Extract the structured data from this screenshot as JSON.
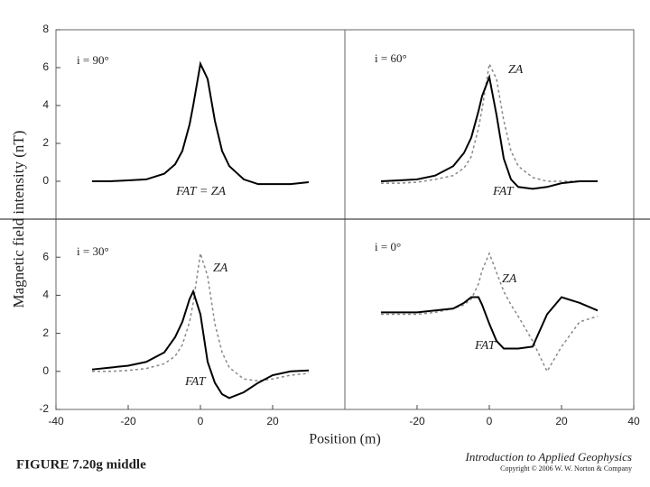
{
  "chart_data": [
    {
      "type": "line",
      "annotation": "i = 90°",
      "xlim": [
        -40,
        40
      ],
      "ylim": [
        -2,
        8
      ],
      "yticks": [
        0,
        2,
        4,
        6,
        8
      ],
      "x": [
        -30,
        -25,
        -20,
        -15,
        -10,
        -7,
        -5,
        -3,
        -2,
        0,
        2,
        4,
        6,
        8,
        12,
        16,
        20,
        25,
        30
      ],
      "series": [
        {
          "name": "FAT = ZA",
          "color": "#000000",
          "style": "solid",
          "values": [
            0,
            0,
            0.05,
            0.1,
            0.4,
            0.9,
            1.6,
            3,
            4,
            6.2,
            5.4,
            3.2,
            1.6,
            0.8,
            0.1,
            -0.15,
            -0.15,
            -0.15,
            -0.05
          ]
        }
      ]
    },
    {
      "type": "line",
      "annotation": "i = 60°",
      "xlim": [
        -40,
        40
      ],
      "ylim": [
        -2,
        8
      ],
      "x": [
        -30,
        -25,
        -20,
        -15,
        -10,
        -7,
        -5,
        -3,
        -2,
        0,
        2,
        4,
        6,
        8,
        12,
        16,
        20,
        25,
        30
      ],
      "series": [
        {
          "name": "ZA",
          "color": "#888888",
          "style": "dashed",
          "values": [
            -0.1,
            -0.1,
            -0.05,
            0.1,
            0.3,
            0.7,
            1.3,
            2.8,
            3.8,
            6.2,
            5.4,
            3.2,
            1.6,
            0.8,
            0.2,
            0,
            0,
            0,
            0
          ]
        },
        {
          "name": "FAT",
          "color": "#000000",
          "style": "solid",
          "values": [
            0,
            0.05,
            0.1,
            0.3,
            0.8,
            1.5,
            2.3,
            3.7,
            4.5,
            5.5,
            3.5,
            1.2,
            0.1,
            -0.3,
            -0.4,
            -0.3,
            -0.1,
            0,
            0
          ]
        }
      ]
    },
    {
      "type": "line",
      "annotation": "i = 30°",
      "xlim": [
        -40,
        40
      ],
      "ylim": [
        -2,
        8
      ],
      "yticks": [
        -2,
        0,
        2,
        4,
        6
      ],
      "xticks": [
        -40,
        -20,
        0,
        20
      ],
      "x": [
        -30,
        -25,
        -20,
        -15,
        -10,
        -7,
        -5,
        -3,
        -2,
        0,
        2,
        4,
        6,
        8,
        12,
        16,
        20,
        25,
        30
      ],
      "series": [
        {
          "name": "ZA",
          "color": "#888888",
          "style": "dashed",
          "values": [
            0,
            0,
            0.05,
            0.15,
            0.4,
            0.8,
            1.4,
            2.6,
            3.6,
            6.2,
            5,
            2.5,
            1,
            0.2,
            -0.4,
            -0.5,
            -0.4,
            -0.2,
            -0.1
          ]
        },
        {
          "name": "FAT",
          "color": "#000000",
          "style": "solid",
          "values": [
            0.1,
            0.2,
            0.3,
            0.5,
            1,
            1.8,
            2.6,
            3.8,
            4.2,
            3,
            0.5,
            -0.6,
            -1.2,
            -1.4,
            -1.1,
            -0.6,
            -0.2,
            0,
            0.05
          ]
        }
      ]
    },
    {
      "type": "line",
      "annotation": "i = 0°",
      "xlim": [
        -40,
        40
      ],
      "ylim": [
        -2,
        8
      ],
      "xticks": [
        -20,
        0,
        20,
        40
      ],
      "x": [
        -30,
        -25,
        -20,
        -15,
        -10,
        -7,
        -5,
        -3,
        -2,
        0,
        2,
        4,
        6,
        8,
        12,
        16,
        20,
        25,
        30
      ],
      "series": [
        {
          "name": "ZA",
          "color": "#888888",
          "style": "dashed",
          "values": [
            3,
            3,
            3,
            3.1,
            3.3,
            3.5,
            3.8,
            4.6,
            5.3,
            6.2,
            5.2,
            4.2,
            3.5,
            2.9,
            1.6,
            0,
            1.3,
            2.6,
            2.9
          ]
        },
        {
          "name": "FAT",
          "color": "#000000",
          "style": "solid",
          "values": [
            3.1,
            3.1,
            3.1,
            3.2,
            3.3,
            3.6,
            3.9,
            3.9,
            3.5,
            2.5,
            1.6,
            1.2,
            1.2,
            1.2,
            1.3,
            3,
            3.9,
            3.6,
            3.2
          ]
        }
      ]
    }
  ],
  "figure": {
    "xlabel": "Position (m)",
    "ylabel": "Magnetic field intensity (nT)",
    "caption": "FIGURE 7.20g middle",
    "book": "Introduction to Applied Geophysics",
    "copyright": "Copyright © 2006 W. W. Norton & Company"
  }
}
